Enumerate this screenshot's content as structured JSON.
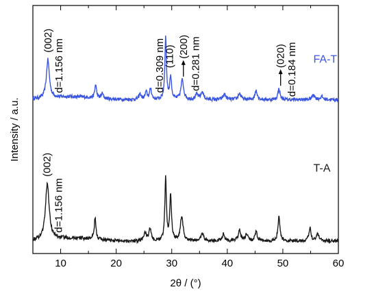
{
  "chart_data": {
    "type": "line",
    "xlabel": "2θ / (°)",
    "ylabel": "Intensity / a.u.",
    "xlim": [
      5,
      60
    ],
    "x_ticks": [
      10,
      20,
      30,
      40,
      50,
      60
    ],
    "x_tick_labels": [
      "10",
      "20",
      "30",
      "40",
      "50",
      "60"
    ],
    "y_ticks_shown": false,
    "grid": false,
    "legend": "none (series labels placed next to curves)",
    "series": [
      {
        "name": "FA-T",
        "color": "#3a55e0",
        "baseline": 0.62,
        "peaks": [
          {
            "x": 7.7,
            "h": 0.155,
            "w": 0.32
          },
          {
            "x": 16.3,
            "h": 0.055,
            "w": 0.18
          },
          {
            "x": 17.5,
            "h": 0.02,
            "w": 0.2
          },
          {
            "x": 24.3,
            "h": 0.022,
            "w": 0.25
          },
          {
            "x": 25.4,
            "h": 0.03,
            "w": 0.22
          },
          {
            "x": 26.2,
            "h": 0.045,
            "w": 0.2
          },
          {
            "x": 28.9,
            "h": 0.25,
            "w": 0.17
          },
          {
            "x": 29.8,
            "h": 0.09,
            "w": 0.2
          },
          {
            "x": 31.9,
            "h": 0.08,
            "w": 0.28
          },
          {
            "x": 34.5,
            "h": 0.02,
            "w": 0.3
          },
          {
            "x": 35.5,
            "h": 0.03,
            "w": 0.3
          },
          {
            "x": 39.5,
            "h": 0.022,
            "w": 0.3
          },
          {
            "x": 42.2,
            "h": 0.025,
            "w": 0.3
          },
          {
            "x": 45.2,
            "h": 0.038,
            "w": 0.25
          },
          {
            "x": 49.3,
            "h": 0.045,
            "w": 0.22
          },
          {
            "x": 55.5,
            "h": 0.02,
            "w": 0.3
          },
          {
            "x": 57.0,
            "h": 0.012,
            "w": 0.3
          }
        ]
      },
      {
        "name": "T-A",
        "color": "#1a1a1a",
        "baseline": 0.05,
        "peaks": [
          {
            "x": 7.6,
            "h": 0.225,
            "w": 0.4
          },
          {
            "x": 16.2,
            "h": 0.085,
            "w": 0.18
          },
          {
            "x": 25.2,
            "h": 0.035,
            "w": 0.25
          },
          {
            "x": 26.1,
            "h": 0.05,
            "w": 0.22
          },
          {
            "x": 28.9,
            "h": 0.25,
            "w": 0.17
          },
          {
            "x": 29.8,
            "h": 0.18,
            "w": 0.2
          },
          {
            "x": 31.8,
            "h": 0.1,
            "w": 0.28
          },
          {
            "x": 35.5,
            "h": 0.03,
            "w": 0.3
          },
          {
            "x": 39.3,
            "h": 0.028,
            "w": 0.3
          },
          {
            "x": 42.2,
            "h": 0.045,
            "w": 0.25
          },
          {
            "x": 43.5,
            "h": 0.025,
            "w": 0.3
          },
          {
            "x": 45.2,
            "h": 0.035,
            "w": 0.25
          },
          {
            "x": 49.3,
            "h": 0.095,
            "w": 0.22
          },
          {
            "x": 54.9,
            "h": 0.055,
            "w": 0.22
          },
          {
            "x": 56.3,
            "h": 0.03,
            "w": 0.3
          }
        ]
      }
    ],
    "annotations": [
      {
        "text": "(002)",
        "x": 7.7,
        "series": "FA-T",
        "arrow": false
      },
      {
        "text": "d=1.156 nm",
        "x": 9.7,
        "series": "FA-T",
        "arrow": false
      },
      {
        "text": "d=0.309 nm",
        "x": 27.8,
        "series": "FA-T",
        "arrow": false
      },
      {
        "text": "(110)",
        "x": 29.6,
        "series": "FA-T",
        "arrow": false
      },
      {
        "text": "(200)",
        "x": 32.1,
        "series": "FA-T",
        "arrow": true
      },
      {
        "text": "d=0.281 nm",
        "x": 34.3,
        "series": "FA-T",
        "arrow": false
      },
      {
        "text": "(020)",
        "x": 49.6,
        "series": "FA-T",
        "arrow": true
      },
      {
        "text": "d=0.184 nm",
        "x": 51.6,
        "series": "FA-T",
        "arrow": false
      },
      {
        "text": "(002)",
        "x": 7.5,
        "series": "T-A",
        "arrow": false
      },
      {
        "text": "d=1.156 nm",
        "x": 9.6,
        "series": "T-A",
        "arrow": false
      }
    ],
    "series_labels": [
      {
        "text": "FA-T",
        "x": 55.5,
        "y": 0.77,
        "color": "#3a55e0"
      },
      {
        "text": "T-A",
        "x": 55.5,
        "y": 0.33,
        "color": "#1a1a1a"
      }
    ]
  }
}
